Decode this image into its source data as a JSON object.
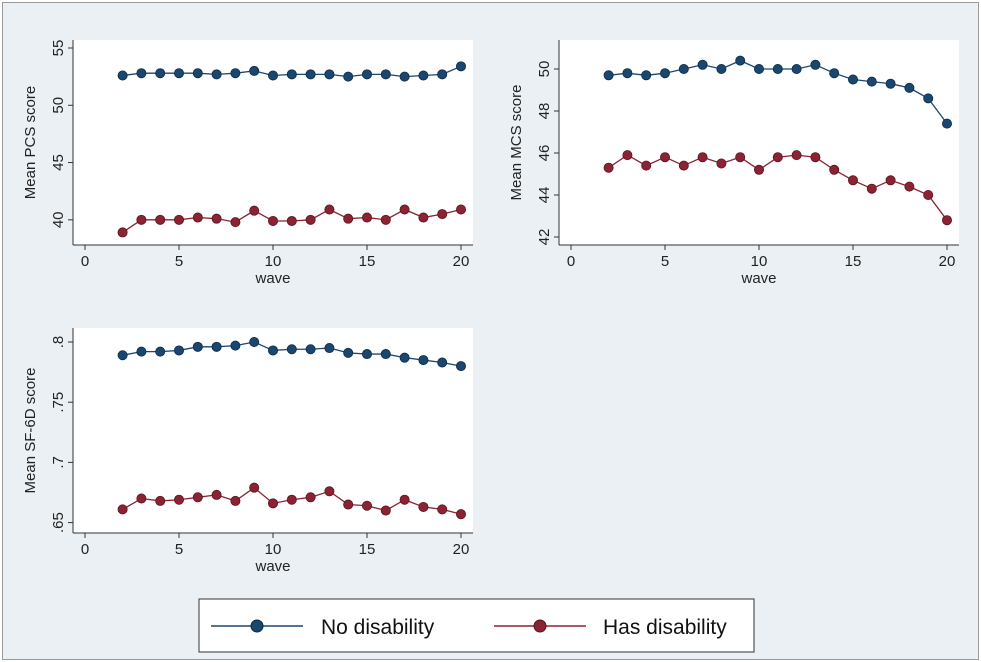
{
  "colors": {
    "background_outer": "#eaf0f4",
    "plot_background": "#ffffff",
    "axis": "#333333",
    "no_disability": "#1a476f",
    "has_disability": "#8b2332"
  },
  "legend": {
    "items": [
      {
        "label": "No disability",
        "color": "#1a476f"
      },
      {
        "label": "Has disability",
        "color": "#8b2332"
      }
    ]
  },
  "chart_data": [
    {
      "type": "line",
      "title": "",
      "xlabel": "wave",
      "ylabel": "Mean PCS score",
      "xlim": [
        0,
        20
      ],
      "ylim": [
        38.5,
        55
      ],
      "xticks": [
        "0",
        "5",
        "10",
        "15",
        "20"
      ],
      "xtick_values": [
        0,
        5,
        10,
        15,
        20
      ],
      "yticks": [
        "40",
        "45",
        "50",
        "55"
      ],
      "ytick_values": [
        40,
        45,
        50,
        55
      ],
      "x": [
        2,
        3,
        4,
        5,
        6,
        7,
        8,
        9,
        10,
        11,
        12,
        13,
        14,
        15,
        16,
        17,
        18,
        19,
        20
      ],
      "series": [
        {
          "name": "No disability",
          "values": [
            52.6,
            52.8,
            52.8,
            52.8,
            52.8,
            52.7,
            52.8,
            53.0,
            52.6,
            52.7,
            52.7,
            52.7,
            52.5,
            52.7,
            52.7,
            52.5,
            52.6,
            52.7,
            53.4
          ]
        },
        {
          "name": "Has disability",
          "values": [
            38.9,
            40.0,
            40.0,
            40.0,
            40.2,
            40.1,
            39.8,
            40.8,
            39.9,
            39.9,
            40.0,
            40.9,
            40.1,
            40.2,
            40.0,
            40.9,
            40.2,
            40.5,
            40.9
          ]
        }
      ],
      "grid": false,
      "legend": "bottom (shared)"
    },
    {
      "type": "line",
      "title": "",
      "xlabel": "wave",
      "ylabel": "Mean MCS score",
      "xlim": [
        0,
        20
      ],
      "ylim": [
        42,
        51
      ],
      "xticks": [
        "0",
        "5",
        "10",
        "15",
        "20"
      ],
      "xtick_values": [
        0,
        5,
        10,
        15,
        20
      ],
      "yticks": [
        "42",
        "44",
        "46",
        "48",
        "50"
      ],
      "ytick_values": [
        42,
        44,
        46,
        48,
        50
      ],
      "x": [
        2,
        3,
        4,
        5,
        6,
        7,
        8,
        9,
        10,
        11,
        12,
        13,
        14,
        15,
        16,
        17,
        18,
        19,
        20
      ],
      "series": [
        {
          "name": "No disability",
          "values": [
            49.7,
            49.8,
            49.7,
            49.8,
            50.0,
            50.2,
            50.0,
            50.4,
            50.0,
            50.0,
            50.0,
            50.2,
            49.8,
            49.5,
            49.4,
            49.3,
            49.1,
            48.6,
            47.4
          ]
        },
        {
          "name": "Has disability",
          "values": [
            45.3,
            45.9,
            45.4,
            45.8,
            45.4,
            45.8,
            45.5,
            45.8,
            45.2,
            45.8,
            45.9,
            45.8,
            45.2,
            44.7,
            44.3,
            44.7,
            44.4,
            44.0,
            42.8
          ]
        }
      ],
      "grid": false,
      "legend": "bottom (shared)"
    },
    {
      "type": "line",
      "title": "",
      "xlabel": "wave",
      "ylabel": "Mean SF-6D score",
      "xlim": [
        0,
        20
      ],
      "ylim": [
        0.648,
        0.805
      ],
      "xticks": [
        "0",
        "5",
        "10",
        "15",
        "20"
      ],
      "xtick_values": [
        0,
        5,
        10,
        15,
        20
      ],
      "yticks": [
        ".65",
        ".7",
        ".75",
        ".8"
      ],
      "ytick_values": [
        0.65,
        0.7,
        0.75,
        0.8
      ],
      "x": [
        2,
        3,
        4,
        5,
        6,
        7,
        8,
        9,
        10,
        11,
        12,
        13,
        14,
        15,
        16,
        17,
        18,
        19,
        20
      ],
      "series": [
        {
          "name": "No disability",
          "values": [
            0.789,
            0.792,
            0.792,
            0.793,
            0.796,
            0.796,
            0.797,
            0.8,
            0.793,
            0.794,
            0.794,
            0.795,
            0.791,
            0.79,
            0.79,
            0.787,
            0.785,
            0.783,
            0.78
          ]
        },
        {
          "name": "Has disability",
          "values": [
            0.661,
            0.67,
            0.668,
            0.669,
            0.671,
            0.673,
            0.668,
            0.679,
            0.666,
            0.669,
            0.671,
            0.676,
            0.665,
            0.664,
            0.66,
            0.669,
            0.663,
            0.661,
            0.657
          ]
        }
      ],
      "grid": false,
      "legend": "bottom (shared)"
    }
  ]
}
